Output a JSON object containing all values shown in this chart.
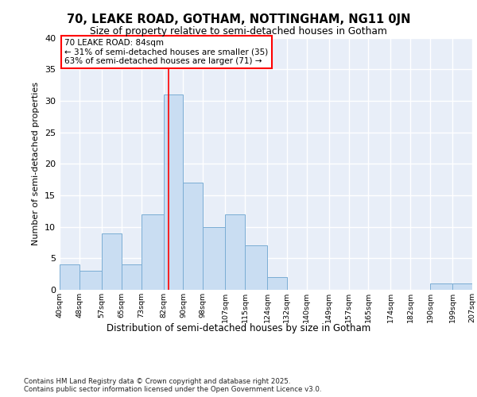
{
  "title": "70, LEAKE ROAD, GOTHAM, NOTTINGHAM, NG11 0JN",
  "subtitle": "Size of property relative to semi-detached houses in Gotham",
  "xlabel": "Distribution of semi-detached houses by size in Gotham",
  "ylabel": "Number of semi-detached properties",
  "bin_edges": [
    40,
    48,
    57,
    65,
    73,
    82,
    90,
    98,
    107,
    115,
    124,
    132,
    140,
    149,
    157,
    165,
    174,
    182,
    190,
    199,
    207
  ],
  "bar_heights": [
    4,
    3,
    9,
    4,
    12,
    31,
    17,
    10,
    12,
    7,
    2,
    0,
    0,
    0,
    0,
    0,
    0,
    0,
    1,
    1
  ],
  "bar_color": "#c9ddf2",
  "bar_edge_color": "#7aadd4",
  "bar_linewidth": 0.7,
  "vline_x": 84,
  "vline_color": "red",
  "annotation_text": "70 LEAKE ROAD: 84sqm\n← 31% of semi-detached houses are smaller (35)\n63% of semi-detached houses are larger (71) →",
  "annotation_box_color": "white",
  "annotation_box_edge_color": "red",
  "ylim": [
    0,
    40
  ],
  "yticks": [
    0,
    5,
    10,
    15,
    20,
    25,
    30,
    35,
    40
  ],
  "background_color": "#e8eef8",
  "grid_color": "white",
  "footnote": "Contains HM Land Registry data © Crown copyright and database right 2025.\nContains public sector information licensed under the Open Government Licence v3.0.",
  "tick_labels": [
    "40sqm",
    "48sqm",
    "57sqm",
    "65sqm",
    "73sqm",
    "82sqm",
    "90sqm",
    "98sqm",
    "107sqm",
    "115sqm",
    "124sqm",
    "132sqm",
    "140sqm",
    "149sqm",
    "157sqm",
    "165sqm",
    "174sqm",
    "182sqm",
    "190sqm",
    "199sqm",
    "207sqm"
  ]
}
